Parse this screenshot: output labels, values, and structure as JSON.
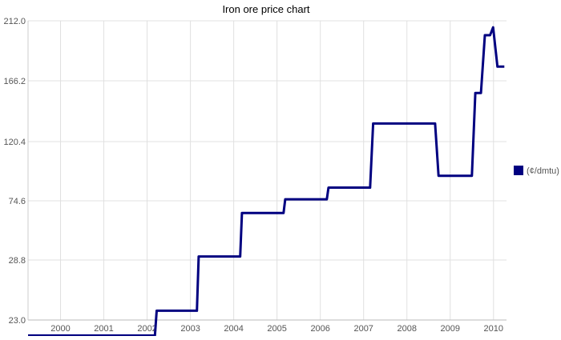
{
  "chart_data": {
    "type": "line",
    "title": "Iron ore   price chart",
    "xlabel": "",
    "ylabel": "",
    "ylim": [
      23.0,
      212.0
    ],
    "xlim": [
      1999.0,
      2010.05
    ],
    "y_ticks": [
      "212.0",
      "166.2",
      "120.4",
      "74.6",
      "28.8",
      "23.0"
    ],
    "y_tick_values": [
      212.0,
      166.2,
      120.4,
      74.6,
      28.8,
      23.0
    ],
    "x_ticks": [
      "2000",
      "2001",
      "2002",
      "2003",
      "2004",
      "2005",
      "2006",
      "2007",
      "2008",
      "2009",
      "2010"
    ],
    "x_tick_values": [
      1999.75,
      2000.75,
      2001.75,
      2002.75,
      2003.75,
      2004.75,
      2005.75,
      2006.75,
      2007.75,
      2008.75,
      2009.75
    ],
    "grid": true,
    "legend_position": "right",
    "series": [
      {
        "name": "(¢/dmtu)",
        "color": "#000080",
        "x": [
          1999.0,
          2001.93,
          2001.97,
          2002.9,
          2002.94,
          2003.9,
          2003.94,
          2004.9,
          2004.94,
          2005.9,
          2005.94,
          2006.9,
          2006.97,
          2008.4,
          2008.48,
          2009.25,
          2009.33,
          2009.46,
          2009.55,
          2009.67,
          2009.74,
          2009.84,
          2010.0
        ],
        "y": [
          21.5,
          21.5,
          23.9,
          23.9,
          31.5,
          31.5,
          65.2,
          65.2,
          75.8,
          75.8,
          84.8,
          84.8,
          134.0,
          134.0,
          94.0,
          94.0,
          157.0,
          157.0,
          201.0,
          201.0,
          207.0,
          177.0,
          177.0
        ]
      }
    ]
  }
}
